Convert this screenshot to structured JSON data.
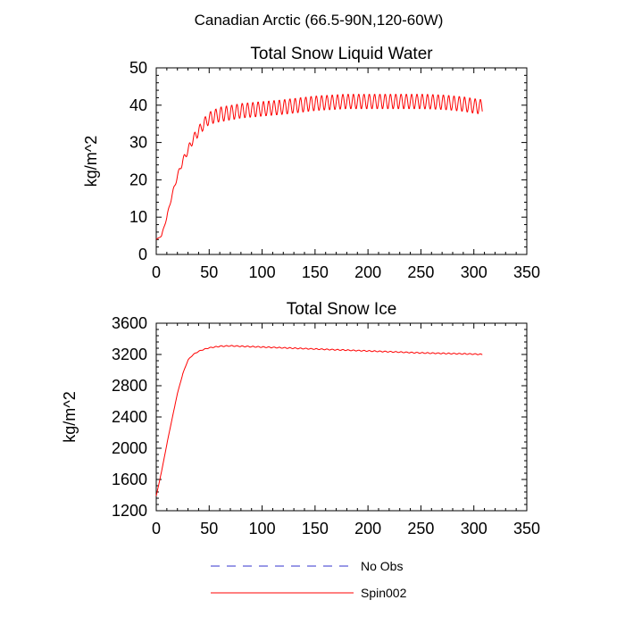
{
  "figure_title": "Canadian Arctic (66.5-90N,120-60W)",
  "legend": {
    "entries": [
      {
        "label": "No Obs",
        "color": "#3333cc",
        "dashed": true
      },
      {
        "label": "Spin002",
        "color": "#ff0000",
        "dashed": false
      }
    ]
  },
  "chart_data": [
    {
      "type": "line",
      "title": "Total Snow Liquid Water",
      "ylabel": "kg/m^2",
      "xlabel": "",
      "xlim": [
        0,
        350
      ],
      "ylim": [
        0,
        50
      ],
      "xticks": [
        0,
        50,
        100,
        150,
        200,
        250,
        300,
        350
      ],
      "yticks": [
        0,
        10,
        20,
        30,
        40,
        50
      ],
      "series": [
        {
          "name": "Spin002",
          "color": "#ff0000",
          "seasonal_amplitude": 2,
          "x": [
            0,
            5,
            10,
            15,
            20,
            25,
            30,
            35,
            40,
            45,
            50,
            60,
            70,
            80,
            100,
            120,
            150,
            180,
            200,
            230,
            250,
            270,
            290,
            300,
            308
          ],
          "values": [
            4,
            5,
            10,
            16,
            21,
            25,
            28,
            31,
            33,
            35,
            36.5,
            37.5,
            38,
            38.5,
            39,
            39.5,
            40.5,
            41,
            41,
            41,
            41,
            40.8,
            40.3,
            39.8,
            39.5
          ]
        }
      ]
    },
    {
      "type": "line",
      "title": "Total Snow Ice",
      "ylabel": "kg/m^2",
      "xlabel": "",
      "xlim": [
        0,
        350
      ],
      "ylim": [
        1200,
        3600
      ],
      "xticks": [
        0,
        50,
        100,
        150,
        200,
        250,
        300,
        350
      ],
      "yticks": [
        1200,
        1600,
        2000,
        2400,
        2800,
        3200,
        3600
      ],
      "series": [
        {
          "name": "Spin002",
          "color": "#ff0000",
          "seasonal_amplitude": 6,
          "x": [
            0,
            5,
            10,
            15,
            20,
            25,
            30,
            35,
            40,
            45,
            50,
            60,
            70,
            80,
            100,
            150,
            200,
            250,
            300,
            308
          ],
          "values": [
            1390,
            1700,
            2050,
            2380,
            2700,
            2950,
            3130,
            3200,
            3240,
            3265,
            3285,
            3305,
            3310,
            3305,
            3295,
            3270,
            3245,
            3220,
            3205,
            3200
          ]
        }
      ]
    }
  ]
}
